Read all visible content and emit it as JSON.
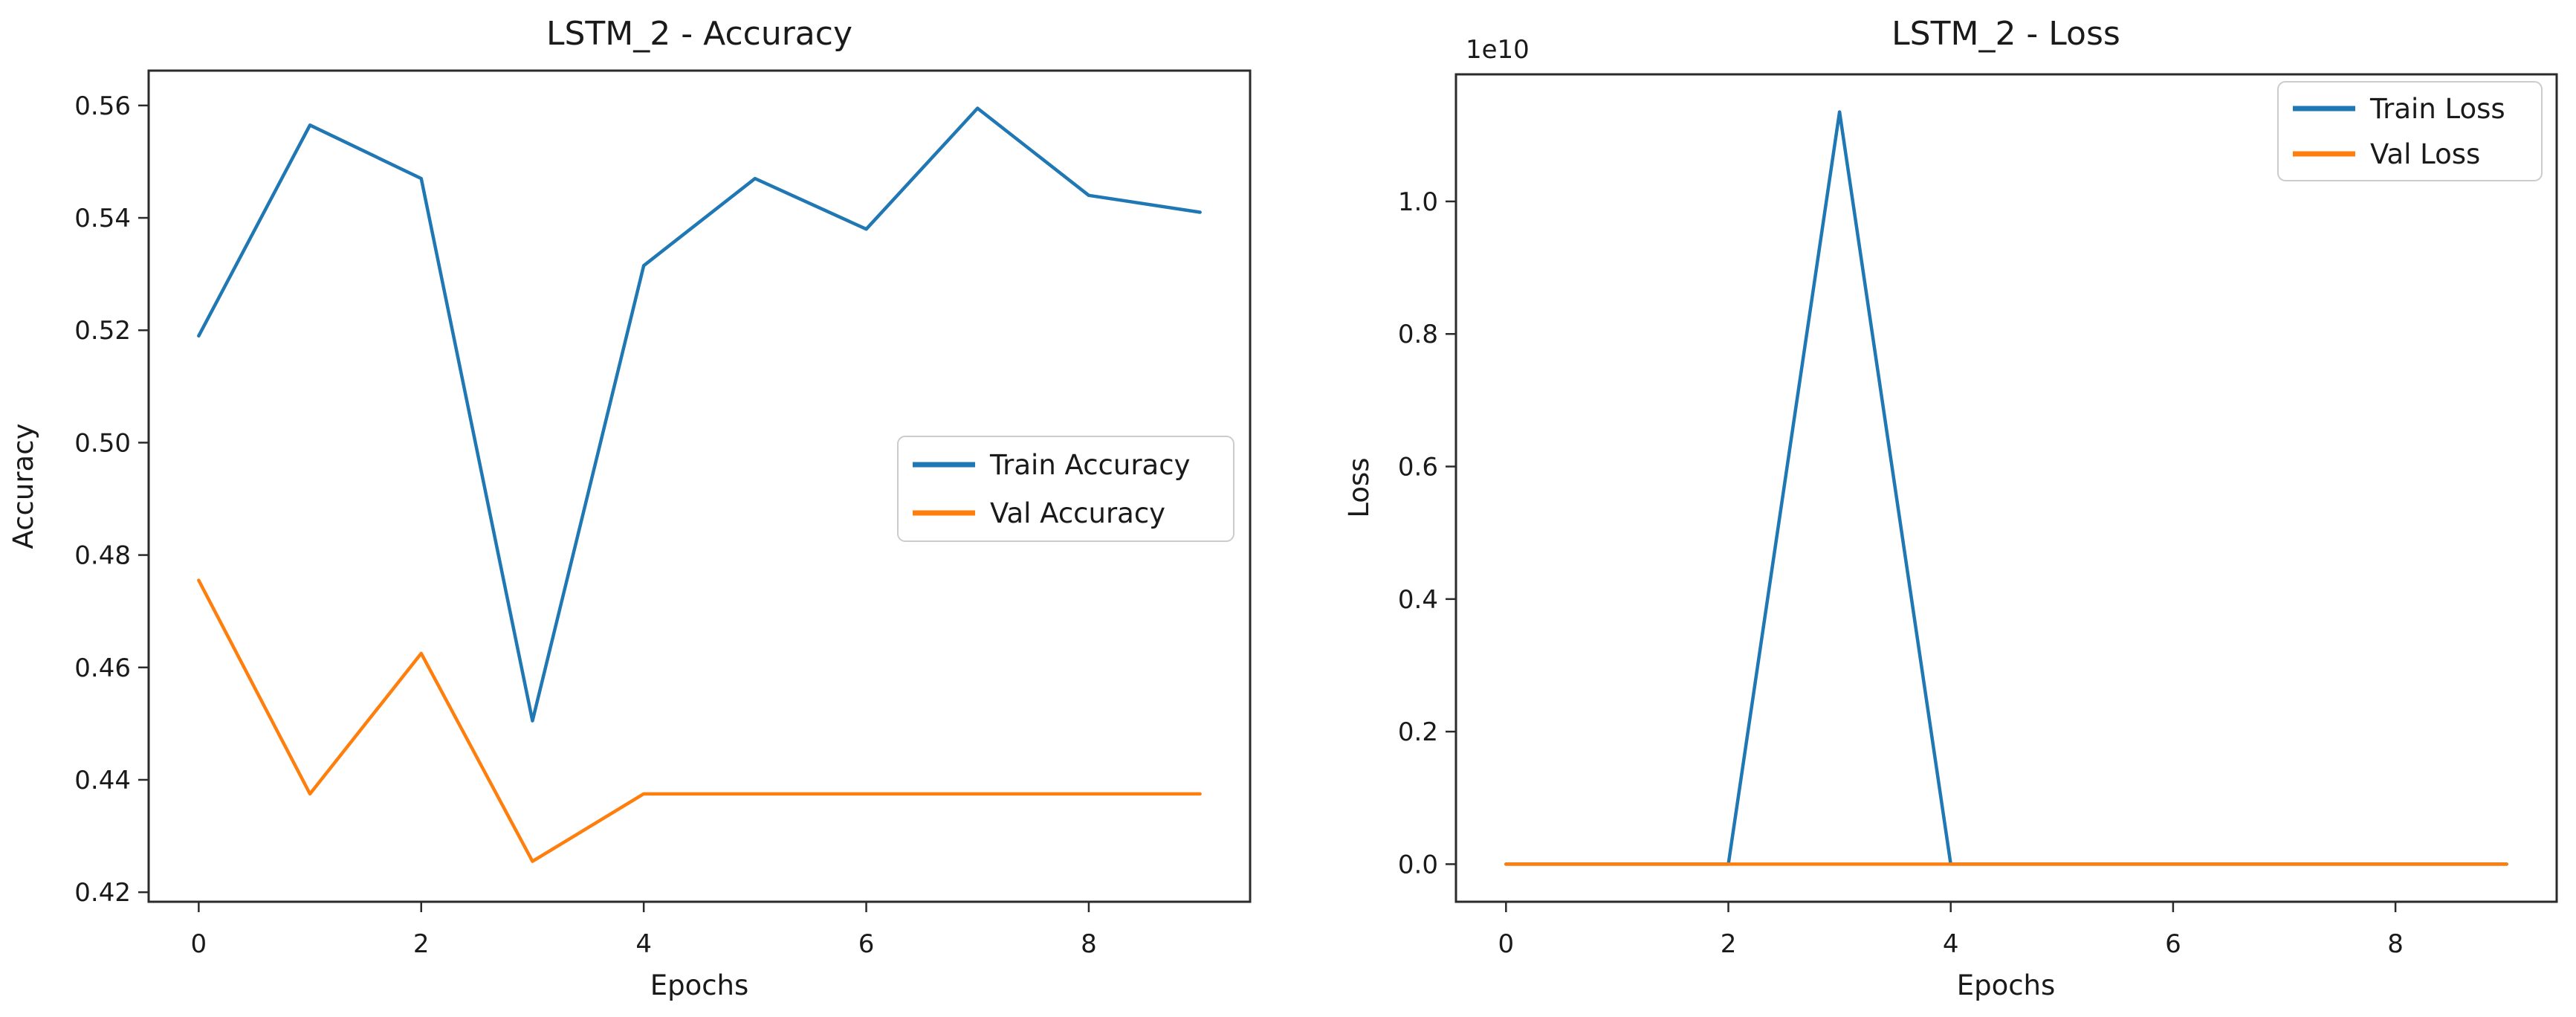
{
  "figure": {
    "background": "#ffffff",
    "text_color": "#1a1a1a",
    "accent_blue": "#1f77b4",
    "accent_orange": "#ff7f0e"
  },
  "chart_data": [
    {
      "type": "line",
      "title": "LSTM_2 - Accuracy",
      "xlabel": "Epochs",
      "ylabel": "Accuracy",
      "x": [
        0,
        1,
        2,
        3,
        4,
        5,
        6,
        7,
        8,
        9
      ],
      "series": [
        {
          "name": "Train Accuracy",
          "color": "#1f77b4",
          "values": [
            0.519,
            0.5565,
            0.547,
            0.4505,
            0.5315,
            0.547,
            0.538,
            0.5595,
            0.544,
            0.541
          ]
        },
        {
          "name": "Val Accuracy",
          "color": "#ff7f0e",
          "values": [
            0.4755,
            0.4375,
            0.4625,
            0.4255,
            0.4375,
            0.4375,
            0.4375,
            0.4375,
            0.4375,
            0.4375
          ]
        }
      ],
      "xlim": [
        -0.45,
        9.45
      ],
      "ylim": [
        0.4183,
        0.5662
      ],
      "xticks": [
        0,
        2,
        4,
        6,
        8
      ],
      "xtick_labels": [
        "0",
        "2",
        "4",
        "6",
        "8"
      ],
      "yticks": [
        0.42,
        0.44,
        0.46,
        0.48,
        0.5,
        0.52,
        0.54,
        0.56
      ],
      "ytick_labels": [
        "0.42",
        "0.44",
        "0.46",
        "0.48",
        "0.50",
        "0.52",
        "0.54",
        "0.56"
      ],
      "legend": {
        "position": "center right",
        "entries": [
          "Train Accuracy",
          "Val Accuracy"
        ]
      },
      "grid": false
    },
    {
      "type": "line",
      "title": "LSTM_2 - Loss",
      "xlabel": "Epochs",
      "ylabel": "Loss",
      "offset_text": "1e10",
      "x": [
        0,
        1,
        2,
        3,
        4,
        5,
        6,
        7,
        8,
        9
      ],
      "series": [
        {
          "name": "Train Loss",
          "color": "#1f77b4",
          "values": [
            0,
            0,
            0,
            11350000000,
            0,
            0,
            0,
            0,
            0,
            0
          ]
        },
        {
          "name": "Val Loss",
          "color": "#ff7f0e",
          "values": [
            0,
            0,
            0,
            0,
            0,
            0,
            0,
            0,
            0,
            0
          ]
        }
      ],
      "xlim": [
        -0.45,
        9.45
      ],
      "ylim": [
        -567500000,
        11917500000
      ],
      "xticks": [
        0,
        2,
        4,
        6,
        8
      ],
      "xtick_labels": [
        "0",
        "2",
        "4",
        "6",
        "8"
      ],
      "yticks": [
        0,
        2000000000,
        4000000000,
        6000000000,
        8000000000,
        10000000000
      ],
      "ytick_labels": [
        "0.0",
        "0.2",
        "0.4",
        "0.6",
        "0.8",
        "1.0"
      ],
      "legend": {
        "position": "upper right",
        "entries": [
          "Train Loss",
          "Val Loss"
        ]
      },
      "grid": false
    }
  ]
}
